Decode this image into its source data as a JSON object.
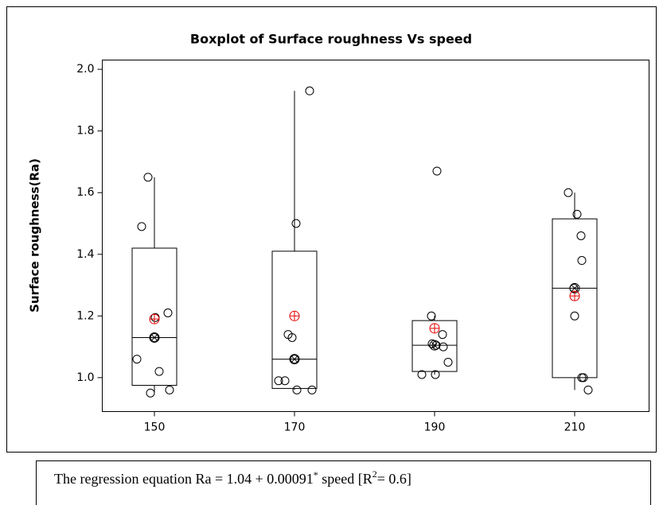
{
  "chart_data": {
    "type": "box",
    "title": "Boxplot of Surface roughness Vs speed",
    "y_label": "Surface roughness(Ra)",
    "categories": [
      "150",
      "170",
      "190",
      "210"
    ],
    "boxes": [
      {
        "min": 0.95,
        "q1": 0.975,
        "median": 1.13,
        "q3": 1.42,
        "max": 1.65,
        "mean": 1.19,
        "points": [
          1.65,
          1.49,
          1.21,
          1.195,
          1.13,
          1.06,
          1.02,
          0.96,
          0.95
        ]
      },
      {
        "min": 0.96,
        "q1": 0.965,
        "median": 1.06,
        "q3": 1.41,
        "max": 1.93,
        "mean": 1.2,
        "points": [
          1.93,
          1.5,
          1.14,
          1.13,
          1.06,
          0.99,
          0.99,
          0.96,
          0.96
        ]
      },
      {
        "min": 1.01,
        "q1": 1.02,
        "median": 1.105,
        "q3": 1.185,
        "max": 1.2,
        "mean": 1.16,
        "points": [
          1.67,
          1.2,
          1.14,
          1.11,
          1.105,
          1.1,
          1.05,
          1.01,
          1.01
        ]
      },
      {
        "min": 0.96,
        "q1": 1.0,
        "median": 1.29,
        "q3": 1.515,
        "max": 1.6,
        "mean": 1.265,
        "points": [
          1.6,
          1.53,
          1.46,
          1.38,
          1.29,
          1.2,
          1.0,
          1.0,
          0.96
        ]
      }
    ],
    "mean_color": "#e00000",
    "ylim": [
      0.89,
      2.03
    ],
    "yticks": [
      {
        "value": 1,
        "label": "1.0"
      },
      1.2,
      1.4,
      1.6,
      1.8,
      {
        "value": 2,
        "label": "2.0"
      }
    ]
  },
  "footnote": [
    "The regression equation Ra = 1.04 + 0.00091",
    "*",
    " speed [R",
    "2",
    "= 0.6]"
  ]
}
